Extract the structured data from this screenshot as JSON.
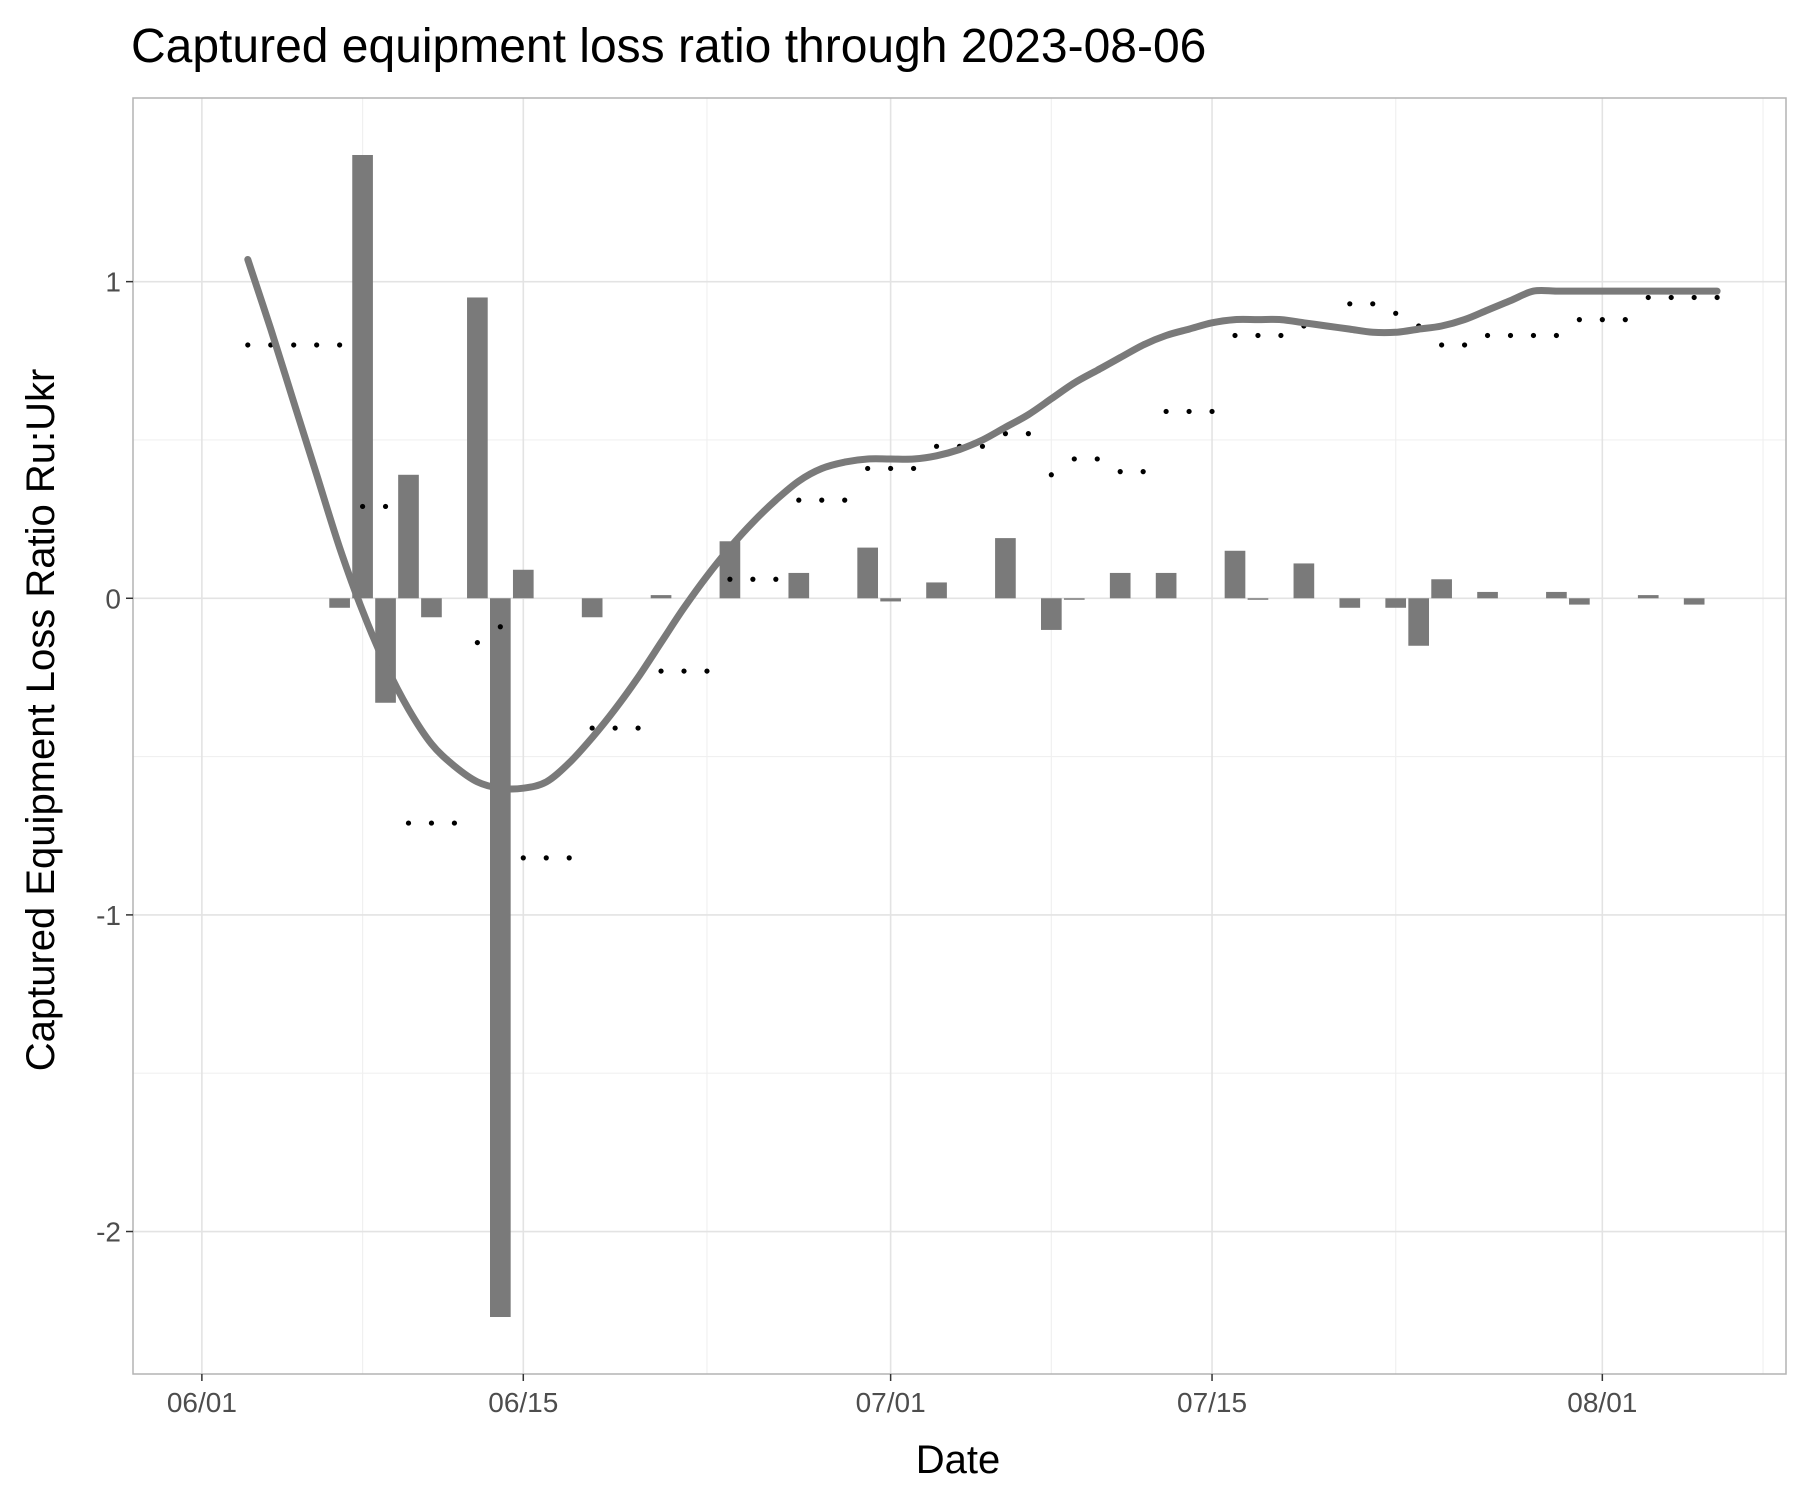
{
  "chart_data": {
    "type": "bar",
    "title": "Captured equipment loss ratio through 2023-08-06",
    "xlabel": "Date",
    "ylabel": "Captured Equipment Loss Ratio Ru:Ukr",
    "xlim": [
      "2023-05-29",
      "2023-08-09"
    ],
    "ylim": [
      -2.45,
      1.58
    ],
    "x_ticks": [
      {
        "date": "2023-06-01",
        "label": "06/01"
      },
      {
        "date": "2023-06-15",
        "label": "06/15"
      },
      {
        "date": "2023-07-01",
        "label": "07/01"
      },
      {
        "date": "2023-07-15",
        "label": "07/15"
      },
      {
        "date": "2023-08-01",
        "label": "08/01"
      }
    ],
    "x_minor_ticks": [
      "2023-06-08",
      "2023-06-23",
      "2023-07-08",
      "2023-07-23",
      "2023-08-08"
    ],
    "y_ticks": [
      {
        "value": 1,
        "label": "1"
      },
      {
        "value": 0,
        "label": "0"
      },
      {
        "value": -1,
        "label": "-1"
      },
      {
        "value": -2,
        "label": "-2"
      }
    ],
    "y_minor_ticks": [
      0.5,
      -0.5,
      -1.5
    ],
    "grid": true,
    "series": [
      {
        "kind": "bar",
        "color": "#7a7a7a",
        "x": [
          "2023-06-07",
          "2023-06-08",
          "2023-06-09",
          "2023-06-10",
          "2023-06-11",
          "2023-06-13",
          "2023-06-14",
          "2023-06-15",
          "2023-06-18",
          "2023-06-21",
          "2023-06-24",
          "2023-06-27",
          "2023-06-30",
          "2023-07-01",
          "2023-07-03",
          "2023-07-06",
          "2023-07-08",
          "2023-07-09",
          "2023-07-11",
          "2023-07-13",
          "2023-07-16",
          "2023-07-17",
          "2023-07-19",
          "2023-07-21",
          "2023-07-23",
          "2023-07-24",
          "2023-07-25",
          "2023-07-27",
          "2023-07-30",
          "2023-07-31",
          "2023-08-03",
          "2023-08-05"
        ],
        "values": [
          -0.03,
          1.4,
          -0.33,
          0.39,
          -0.06,
          0.95,
          -2.27,
          0.09,
          -0.06,
          0.01,
          0.18,
          0.08,
          0.16,
          -0.01,
          0.05,
          0.19,
          -0.1,
          0.0,
          0.08,
          0.08,
          0.15,
          0.0,
          0.11,
          -0.03,
          -0.03,
          -0.15,
          0.06,
          0.02,
          0.02,
          -0.02,
          0.01,
          -0.02
        ]
      },
      {
        "kind": "points",
        "color": "#000000",
        "x": [
          "2023-06-03",
          "2023-06-04",
          "2023-06-05",
          "2023-06-06",
          "2023-06-07",
          "2023-06-08",
          "2023-06-09",
          "2023-06-10",
          "2023-06-11",
          "2023-06-12",
          "2023-06-13",
          "2023-06-14",
          "2023-06-15",
          "2023-06-16",
          "2023-06-17",
          "2023-06-18",
          "2023-06-19",
          "2023-06-20",
          "2023-06-21",
          "2023-06-22",
          "2023-06-23",
          "2023-06-24",
          "2023-06-25",
          "2023-06-26",
          "2023-06-27",
          "2023-06-28",
          "2023-06-29",
          "2023-06-30",
          "2023-07-01",
          "2023-07-02",
          "2023-07-03",
          "2023-07-04",
          "2023-07-05",
          "2023-07-06",
          "2023-07-07",
          "2023-07-08",
          "2023-07-09",
          "2023-07-10",
          "2023-07-11",
          "2023-07-12",
          "2023-07-13",
          "2023-07-14",
          "2023-07-15",
          "2023-07-16",
          "2023-07-17",
          "2023-07-18",
          "2023-07-19",
          "2023-07-20",
          "2023-07-21",
          "2023-07-22",
          "2023-07-23",
          "2023-07-24",
          "2023-07-25",
          "2023-07-26",
          "2023-07-27",
          "2023-07-28",
          "2023-07-29",
          "2023-07-30",
          "2023-07-31",
          "2023-08-01",
          "2023-08-02",
          "2023-08-03",
          "2023-08-04",
          "2023-08-05",
          "2023-08-06"
        ],
        "values": [
          0.8,
          0.8,
          0.8,
          0.8,
          0.8,
          0.29,
          0.29,
          -0.71,
          -0.71,
          -0.71,
          -0.14,
          -0.09,
          -0.82,
          -0.82,
          -0.82,
          -0.41,
          -0.41,
          -0.41,
          -0.23,
          -0.23,
          -0.23,
          0.06,
          0.06,
          0.06,
          0.31,
          0.31,
          0.31,
          0.41,
          0.41,
          0.41,
          0.48,
          0.48,
          0.48,
          0.52,
          0.52,
          0.39,
          0.44,
          0.44,
          0.4,
          0.4,
          0.59,
          0.59,
          0.59,
          0.83,
          0.83,
          0.83,
          0.86,
          0.86,
          0.93,
          0.93,
          0.9,
          0.86,
          0.8,
          0.8,
          0.83,
          0.83,
          0.83,
          0.83,
          0.88,
          0.88,
          0.88,
          0.95,
          0.95,
          0.95,
          0.95
        ]
      },
      {
        "kind": "smooth",
        "color": "#7a7a7a",
        "x": [
          "2023-06-03",
          "2023-06-04",
          "2023-06-05",
          "2023-06-06",
          "2023-06-07",
          "2023-06-08",
          "2023-06-09",
          "2023-06-10",
          "2023-06-11",
          "2023-06-12",
          "2023-06-13",
          "2023-06-14",
          "2023-06-15",
          "2023-06-16",
          "2023-06-17",
          "2023-06-18",
          "2023-06-19",
          "2023-06-20",
          "2023-06-21",
          "2023-06-22",
          "2023-06-23",
          "2023-06-24",
          "2023-06-25",
          "2023-06-26",
          "2023-06-27",
          "2023-06-28",
          "2023-06-29",
          "2023-06-30",
          "2023-07-01",
          "2023-07-02",
          "2023-07-03",
          "2023-07-04",
          "2023-07-05",
          "2023-07-06",
          "2023-07-07",
          "2023-07-08",
          "2023-07-09",
          "2023-07-10",
          "2023-07-11",
          "2023-07-12",
          "2023-07-13",
          "2023-07-14",
          "2023-07-15",
          "2023-07-16",
          "2023-07-17",
          "2023-07-18",
          "2023-07-19",
          "2023-07-20",
          "2023-07-21",
          "2023-07-22",
          "2023-07-23",
          "2023-07-24",
          "2023-07-25",
          "2023-07-26",
          "2023-07-27",
          "2023-07-28",
          "2023-07-29",
          "2023-07-30",
          "2023-07-31",
          "2023-08-01",
          "2023-08-02",
          "2023-08-03",
          "2023-08-04",
          "2023-08-05",
          "2023-08-06"
        ],
        "values": [
          1.07,
          0.85,
          0.62,
          0.39,
          0.16,
          -0.04,
          -0.21,
          -0.35,
          -0.46,
          -0.53,
          -0.58,
          -0.6,
          -0.6,
          -0.58,
          -0.52,
          -0.44,
          -0.35,
          -0.25,
          -0.14,
          -0.03,
          0.07,
          0.16,
          0.24,
          0.31,
          0.37,
          0.41,
          0.43,
          0.44,
          0.44,
          0.44,
          0.45,
          0.47,
          0.5,
          0.54,
          0.58,
          0.63,
          0.68,
          0.72,
          0.76,
          0.8,
          0.83,
          0.85,
          0.87,
          0.88,
          0.88,
          0.88,
          0.87,
          0.86,
          0.85,
          0.84,
          0.84,
          0.85,
          0.86,
          0.88,
          0.91,
          0.94,
          0.97,
          0.97,
          0.97,
          0.97,
          0.97,
          0.97,
          0.97,
          0.97,
          0.97
        ]
      }
    ]
  }
}
